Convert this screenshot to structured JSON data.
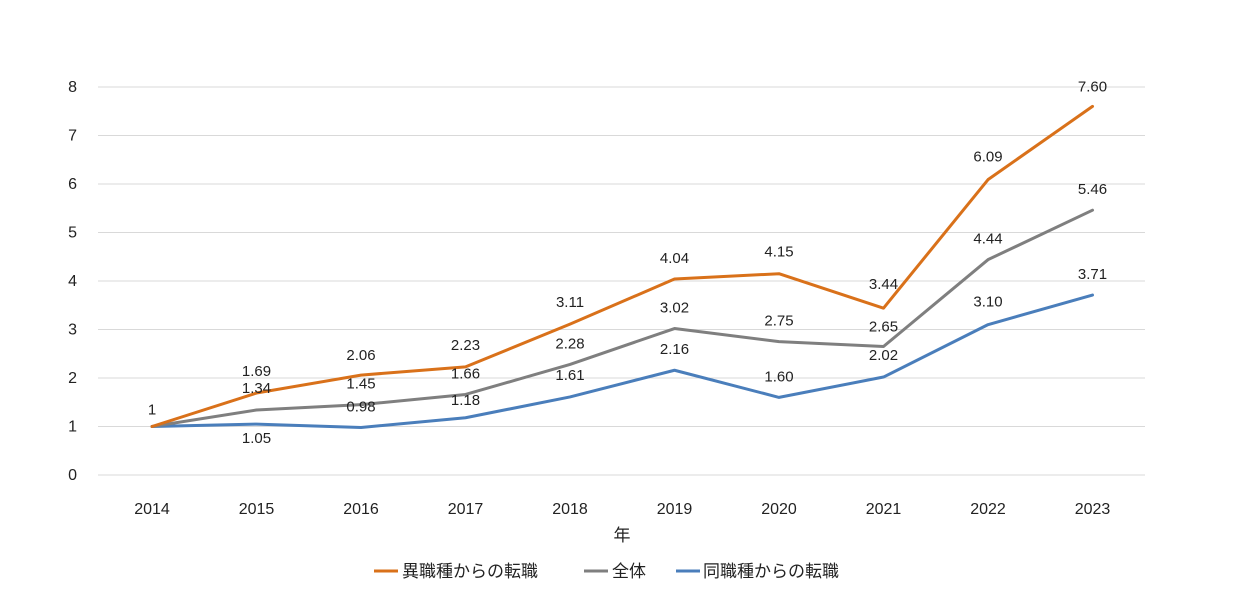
{
  "chart_data": {
    "type": "line",
    "title": "",
    "xlabel": "年",
    "ylabel": "",
    "ylim": [
      0,
      8
    ],
    "yticks": [
      "0",
      "1",
      "2",
      "3",
      "4",
      "5",
      "6",
      "7",
      "8"
    ],
    "categories": [
      "2014",
      "2015",
      "2016",
      "2017",
      "2018",
      "2019",
      "2020",
      "2021",
      "2022",
      "2023"
    ],
    "grid": true,
    "legend_position": "bottom",
    "series": [
      {
        "name": "異職種からの転職",
        "color": "#D9711A",
        "values": [
          1,
          1.69,
          2.06,
          2.23,
          3.11,
          4.04,
          4.15,
          3.44,
          6.09,
          7.6
        ],
        "labels": [
          "1",
          "1.69",
          "2.06",
          "2.23",
          "3.11",
          "4.04",
          "4.15",
          "3.44",
          "6.09",
          "7.60"
        ]
      },
      {
        "name": "全体",
        "color": "#7F7F7F",
        "values": [
          1,
          1.34,
          1.45,
          1.66,
          2.28,
          3.02,
          2.75,
          2.65,
          4.44,
          5.46
        ],
        "labels": [
          "",
          "1.34",
          "1.45",
          "1.66",
          "2.28",
          "3.02",
          "2.75",
          "2.65",
          "4.44",
          "5.46"
        ]
      },
      {
        "name": "同職種からの転職",
        "color": "#4A7EBB",
        "values": [
          1,
          1.05,
          0.98,
          1.18,
          1.61,
          2.16,
          1.6,
          2.02,
          3.1,
          3.71
        ],
        "labels": [
          "",
          "1.05",
          "0.98",
          "1.18",
          "1.61",
          "2.16",
          "1.60",
          "2.02",
          "3.10",
          "3.71"
        ]
      }
    ]
  }
}
